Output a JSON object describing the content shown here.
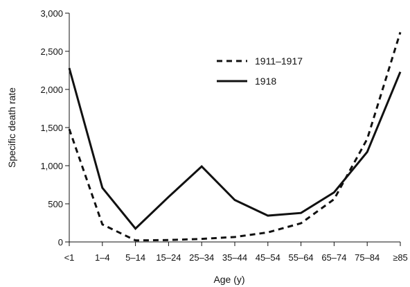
{
  "chart_data": {
    "type": "line",
    "title": "",
    "xlabel": "Age (y)",
    "ylabel": "Specific death rate",
    "categories": [
      "<1",
      "1–4",
      "5–14",
      "15–24",
      "25–34",
      "35–44",
      "45–54",
      "55–64",
      "65–74",
      "75–84",
      "≥85"
    ],
    "ylim": [
      0,
      3000
    ],
    "yticks": [
      0,
      500,
      1000,
      1500,
      2000,
      2500,
      3000
    ],
    "ytick_labels": [
      "0",
      "500",
      "1,000",
      "1,500",
      "2,000",
      "2,500",
      "3,000"
    ],
    "grid": false,
    "legend_position": "top-right",
    "series": [
      {
        "name": "1911–1917",
        "line_style": "dashed",
        "color": "#111111",
        "values": [
          1480,
          230,
          20,
          25,
          40,
          65,
          125,
          245,
          560,
          1350,
          2750
        ]
      },
      {
        "name": "1918",
        "line_style": "solid",
        "color": "#111111",
        "values": [
          2280,
          710,
          175,
          590,
          990,
          550,
          345,
          380,
          650,
          1180,
          2230
        ]
      }
    ]
  }
}
